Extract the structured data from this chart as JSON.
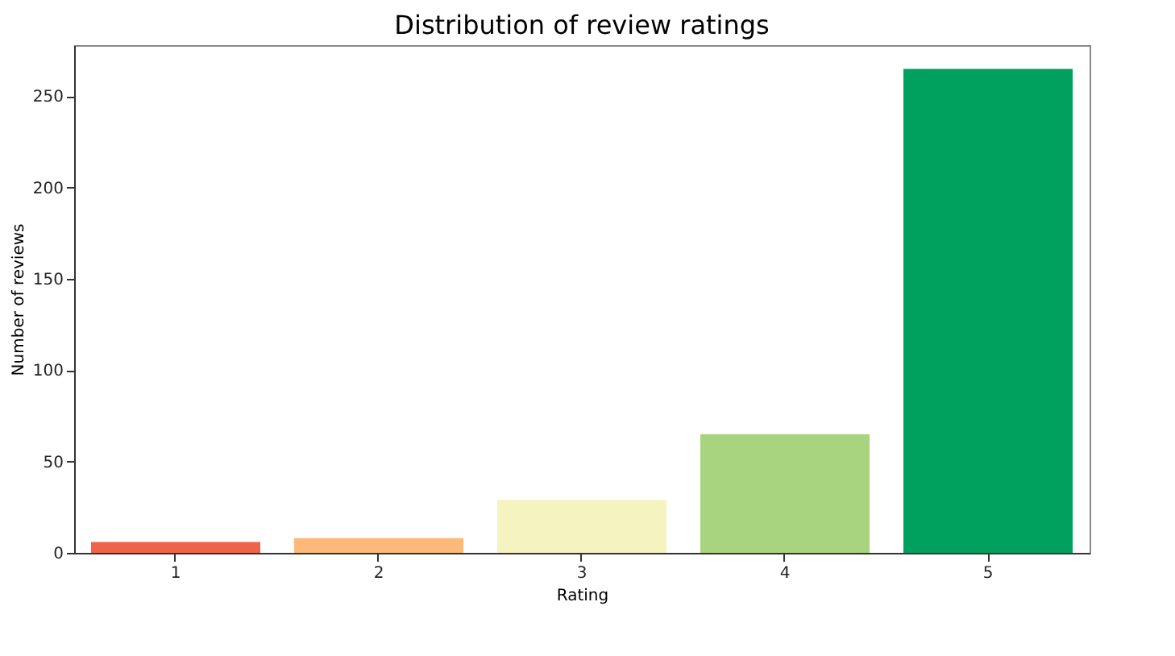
{
  "chart_data": {
    "type": "bar",
    "title": "Distribution of review ratings",
    "xlabel": "Rating",
    "ylabel": "Number of reviews",
    "categories": [
      "1",
      "2",
      "3",
      "4",
      "5"
    ],
    "values": [
      6,
      8,
      29,
      65,
      265
    ],
    "colors": [
      "#ee6449",
      "#fdb97a",
      "#f5f4c0",
      "#a9d47f",
      "#00a05f"
    ],
    "ylim": [
      0,
      278
    ],
    "yticks": [
      0,
      50,
      100,
      150,
      200,
      250
    ],
    "grid": false
  }
}
